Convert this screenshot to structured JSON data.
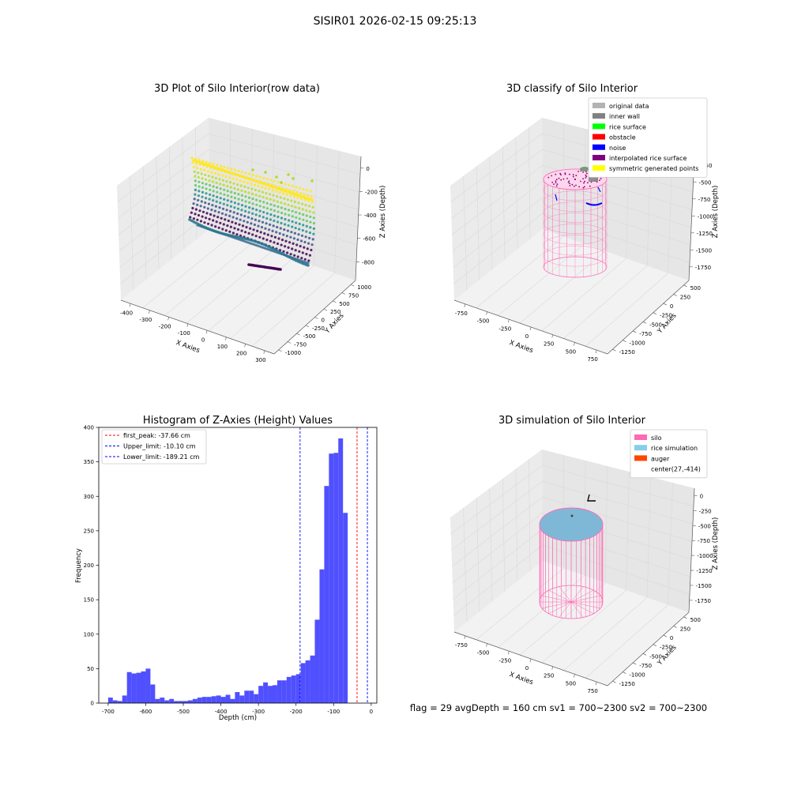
{
  "figure": {
    "suptitle": "SISIR01 2026-02-15 09:25:13",
    "footer": "flag = 29  avgDepth = 160 cm  sv1 = 700~2300  sv2 = 700~2300"
  },
  "panels": {
    "raw": {
      "title": "3D Plot of Silo Interior(row data)",
      "xlabel": "X Axies",
      "ylabel": "Y Axies",
      "zlabel": "Z Axies (Depth)",
      "xticks": [
        "-400",
        "-300",
        "-200",
        "-100",
        "0",
        "100",
        "200",
        "300"
      ],
      "yticks": [
        "1000",
        "750",
        "500",
        "250",
        "0",
        "-250",
        "-500",
        "-750",
        "-1000"
      ],
      "zticks": [
        "0",
        "-200",
        "-400",
        "-600",
        "-800"
      ]
    },
    "classify": {
      "title": "3D classify of Silo Interior",
      "xlabel": "X Axies",
      "ylabel": "Y Axies",
      "zlabel": "Z Axies (Depth)",
      "xticks": [
        "-750",
        "-500",
        "-250",
        "0",
        "250",
        "500",
        "750"
      ],
      "yticks": [
        "500",
        "250",
        "0",
        "-250",
        "-500",
        "-750",
        "-1000",
        "-1250"
      ],
      "zticks": [
        "-250",
        "-500",
        "-750",
        "-1000",
        "-1250",
        "-1500",
        "-1750"
      ],
      "legend": [
        {
          "label": "original data",
          "color": "#b3b3b3"
        },
        {
          "label": "inner wall",
          "color": "#808080"
        },
        {
          "label": "rice surface",
          "color": "#00ff00"
        },
        {
          "label": "obstacle",
          "color": "#ff0000"
        },
        {
          "label": "noise",
          "color": "#0000ff"
        },
        {
          "label": "interpolated rice surface",
          "color": "#800080"
        },
        {
          "label": "symmetric generated points",
          "color": "#ffff00"
        }
      ]
    },
    "simulation": {
      "title": "3D simulation of Silo Interior",
      "xlabel": "X Axies",
      "ylabel": "Y Axies",
      "zlabel": "Z Axies (Depth)",
      "xticks": [
        "-750",
        "-500",
        "-250",
        "0",
        "250",
        "500",
        "750"
      ],
      "yticks": [
        "500",
        "250",
        "0",
        "-250",
        "-500",
        "-750",
        "-1000",
        "-1250"
      ],
      "zticks": [
        "0",
        "-250",
        "-500",
        "-750",
        "-1000",
        "-1250",
        "-1500",
        "-1750"
      ],
      "legend": [
        {
          "label": "silo",
          "color": "#ff69b4"
        },
        {
          "label": "rice simulation",
          "color": "#87ceeb"
        },
        {
          "label": "auger",
          "color": "#ff4500"
        },
        {
          "label": "center(27,-414)",
          "color": ""
        }
      ]
    }
  },
  "chart_data": {
    "type": "bar",
    "title": "Histogram of Z-Axies (Height) Values",
    "xlabel": "Depth (cm)",
    "ylabel": "Frequency",
    "xlim": [
      -725,
      15
    ],
    "ylim": [
      0,
      400
    ],
    "xticks": [
      -700,
      -600,
      -500,
      -400,
      -300,
      -200,
      -100,
      0
    ],
    "yticks": [
      0,
      50,
      100,
      150,
      200,
      250,
      300,
      350,
      400
    ],
    "bin_start": -700,
    "bin_width": 12.5,
    "values": [
      8,
      4,
      3,
      11,
      45,
      43,
      44,
      46,
      50,
      27,
      6,
      8,
      4,
      6,
      3,
      3,
      3,
      4,
      6,
      8,
      9,
      9,
      10,
      11,
      9,
      12,
      6,
      16,
      11,
      18,
      18,
      13,
      25,
      30,
      25,
      26,
      33,
      33,
      38,
      40,
      42,
      58,
      62,
      69,
      121,
      194,
      315,
      362,
      363,
      384,
      276
    ],
    "bar_color": "#5050ff",
    "lines": [
      {
        "label": "first_peak: -37.66 cm",
        "x": -37.66,
        "color": "#ff0000"
      },
      {
        "label": "Upper_limit: -10.10 cm",
        "x": -10.1,
        "color": "#0000ff"
      },
      {
        "label": "Lower_limit: -189.21 cm",
        "x": -189.21,
        "color": "#0000ff"
      }
    ],
    "legend_position": "upper left",
    "grid": false
  }
}
